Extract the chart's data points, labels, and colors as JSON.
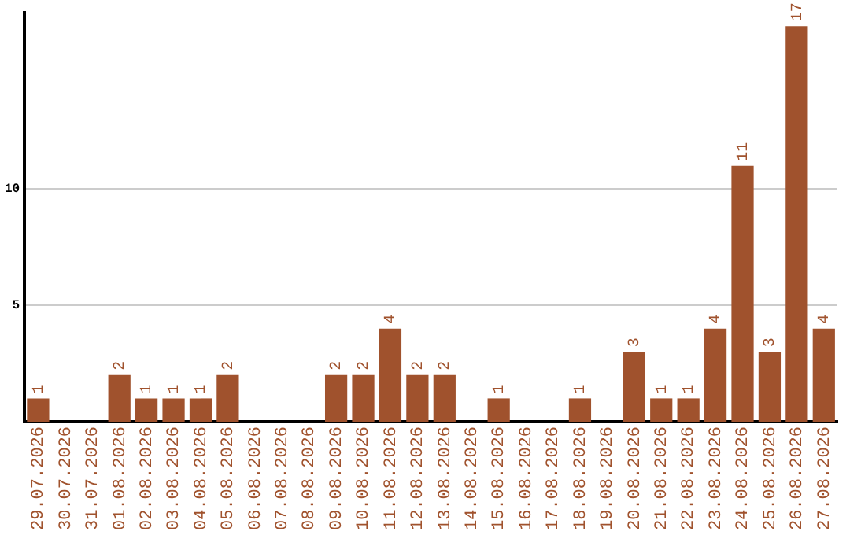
{
  "chart_data": {
    "type": "bar",
    "categories": [
      "29.07.2026",
      "30.07.2026",
      "31.07.2026",
      "01.08.2026",
      "02.08.2026",
      "03.08.2026",
      "04.08.2026",
      "05.08.2026",
      "06.08.2026",
      "07.08.2026",
      "08.08.2026",
      "09.08.2026",
      "10.08.2026",
      "11.08.2026",
      "12.08.2026",
      "13.08.2026",
      "14.08.2026",
      "15.08.2026",
      "16.08.2026",
      "17.08.2026",
      "18.08.2026",
      "19.08.2026",
      "20.08.2026",
      "21.08.2026",
      "22.08.2026",
      "23.08.2026",
      "24.08.2026",
      "25.08.2026",
      "26.08.2026",
      "27.08.2026"
    ],
    "values": [
      1,
      null,
      null,
      2,
      1,
      1,
      1,
      2,
      null,
      null,
      null,
      2,
      2,
      4,
      2,
      2,
      null,
      1,
      null,
      null,
      1,
      null,
      3,
      1,
      1,
      4,
      11,
      3,
      17,
      4
    ],
    "color": "#a0522d",
    "ylim": [
      0,
      17.6
    ],
    "yticks": [
      5,
      10
    ],
    "grid": "y",
    "data_labels": true,
    "legend": false
  }
}
